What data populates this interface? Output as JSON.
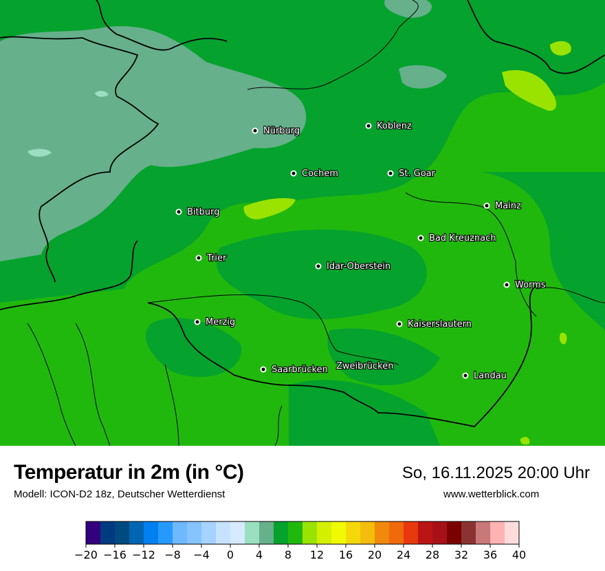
{
  "header": {
    "title": "Temperatur in 2m (in °C)",
    "model": "Modell: ICON-D2 18z, Deutscher Wetterdienst",
    "datetime": "So, 16.11.2025 20:00 Uhr",
    "website": "www.wetterblick.com"
  },
  "map": {
    "cities": [
      "Nürburg",
      "Koblenz",
      "Cochem",
      "St. Goar",
      "Bitburg",
      "Mainz",
      "Bad Kreuznach",
      "Trier",
      "Idar-Oberstein",
      "Worms",
      "Merzig",
      "Kaiserslautern",
      "Saarbrücken",
      "Zweibrücken",
      "Landau"
    ],
    "background_color": "#21b80e"
  },
  "colorbar": {
    "min": -20,
    "max": 40,
    "step": 2,
    "tick_labels": [
      "−20",
      "−16",
      "−12",
      "−8",
      "−4",
      "0",
      "4",
      "8",
      "12",
      "16",
      "20",
      "24",
      "28",
      "32",
      "36",
      "40"
    ],
    "colors": [
      "#33007f",
      "#003a80",
      "#004a80",
      "#0066b3",
      "#0080f0",
      "#2699ff",
      "#6db8ff",
      "#85c4ff",
      "#a6d2ff",
      "#c6e2ff",
      "#d8eaff",
      "#99dfc0",
      "#66b08b",
      "#05a22d",
      "#21b80e",
      "#9ae300",
      "#d3f000",
      "#f0fa00",
      "#f5d80a",
      "#f4bd0b",
      "#f0890c",
      "#f06a0c",
      "#e8380d",
      "#bb1414",
      "#a81018",
      "#7b0000",
      "#8b3333",
      "#c87878",
      "#ffb3b3",
      "#ffdcdc"
    ]
  }
}
